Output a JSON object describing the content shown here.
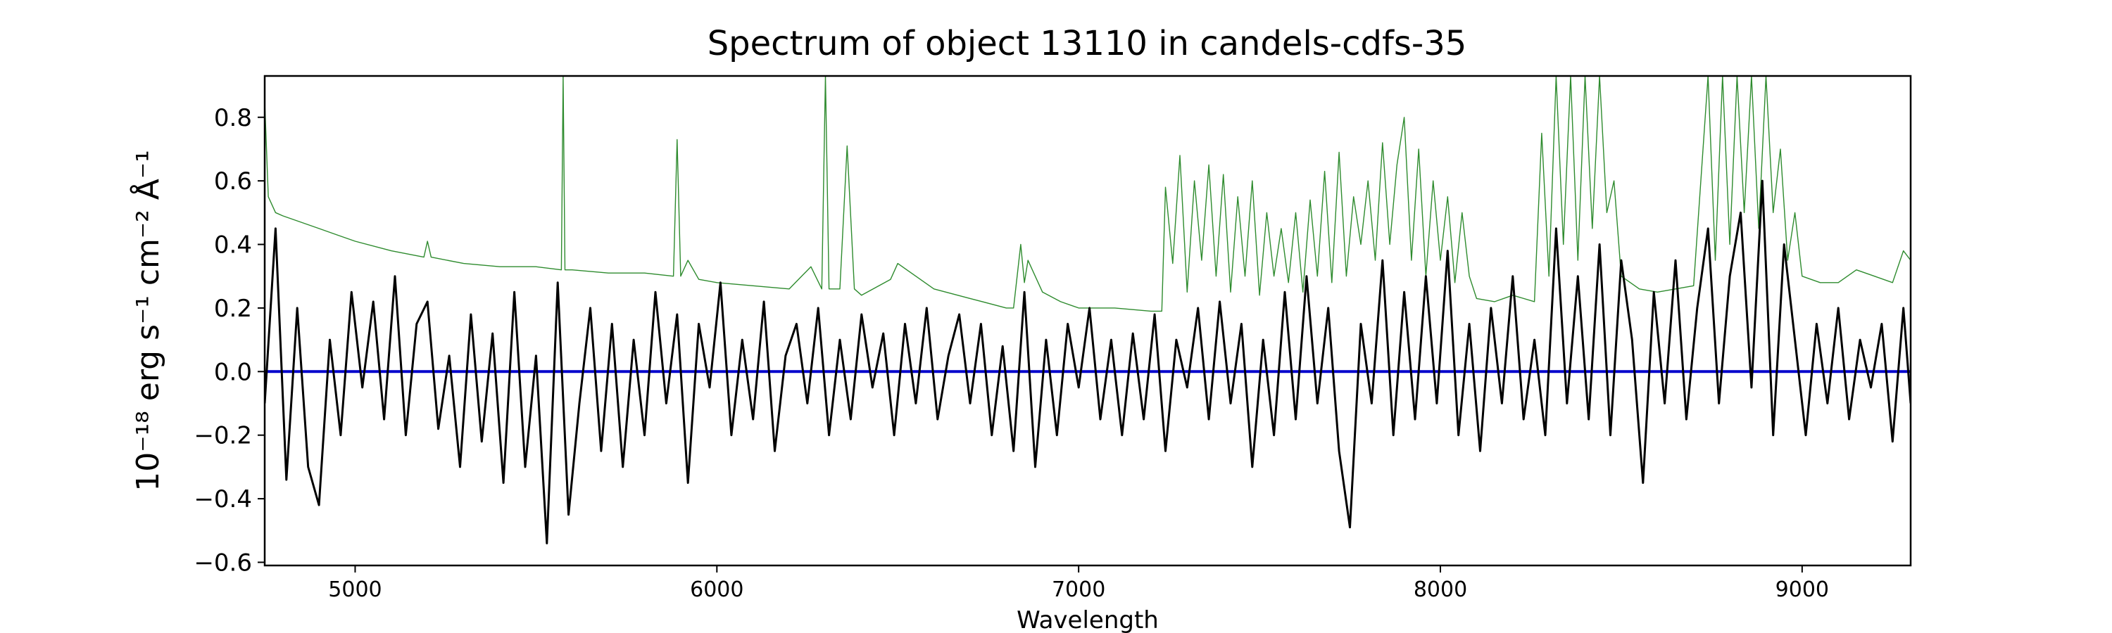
{
  "chart_data": {
    "type": "line",
    "title": "Spectrum of object 13110 in candels-cdfs-35",
    "xlabel": "Wavelength",
    "ylabel": "10⁻¹⁸ erg s⁻¹ cm⁻² Å⁻¹",
    "xlim": [
      4750,
      9300
    ],
    "ylim": [
      -0.61,
      0.93
    ],
    "xticks": [
      5000,
      6000,
      7000,
      8000,
      9000
    ],
    "xtick_labels": [
      "5000",
      "6000",
      "7000",
      "8000",
      "9000"
    ],
    "yticks": [
      -0.6,
      -0.4,
      -0.2,
      0.0,
      0.2,
      0.4,
      0.6,
      0.8
    ],
    "ytick_labels": [
      "−0.6",
      "−0.4",
      "−0.2",
      "0.0",
      "0.2",
      "0.4",
      "0.6",
      "0.8"
    ],
    "grid": false,
    "series": [
      {
        "role": "flux",
        "color": "#000000",
        "x": [
          4750,
          4780,
          4810,
          4840,
          4870,
          4900,
          4930,
          4960,
          4990,
          5020,
          5050,
          5080,
          5110,
          5140,
          5170,
          5200,
          5230,
          5260,
          5290,
          5320,
          5350,
          5380,
          5410,
          5440,
          5470,
          5500,
          5530,
          5560,
          5590,
          5620,
          5650,
          5680,
          5710,
          5740,
          5770,
          5800,
          5830,
          5860,
          5890,
          5920,
          5950,
          5980,
          6010,
          6040,
          6070,
          6100,
          6130,
          6160,
          6190,
          6220,
          6250,
          6280,
          6310,
          6340,
          6370,
          6400,
          6430,
          6460,
          6490,
          6520,
          6550,
          6580,
          6610,
          6640,
          6670,
          6700,
          6730,
          6760,
          6790,
          6820,
          6850,
          6880,
          6910,
          6940,
          6970,
          7000,
          7030,
          7060,
          7090,
          7120,
          7150,
          7180,
          7210,
          7240,
          7270,
          7300,
          7330,
          7360,
          7390,
          7420,
          7450,
          7480,
          7510,
          7540,
          7570,
          7600,
          7630,
          7660,
          7690,
          7720,
          7750,
          7780,
          7810,
          7840,
          7870,
          7900,
          7930,
          7960,
          7990,
          8020,
          8050,
          8080,
          8110,
          8140,
          8170,
          8200,
          8230,
          8260,
          8290,
          8320,
          8350,
          8380,
          8410,
          8440,
          8470,
          8500,
          8530,
          8560,
          8590,
          8620,
          8650,
          8680,
          8710,
          8740,
          8770,
          8800,
          8830,
          8860,
          8890,
          8920,
          8950,
          8980,
          9010,
          9040,
          9070,
          9100,
          9130,
          9160,
          9190,
          9220,
          9250,
          9280,
          9300
        ],
        "y": [
          -0.1,
          0.45,
          -0.34,
          0.2,
          -0.3,
          -0.42,
          0.1,
          -0.2,
          0.25,
          -0.05,
          0.22,
          -0.15,
          0.3,
          -0.2,
          0.15,
          0.22,
          -0.18,
          0.05,
          -0.3,
          0.18,
          -0.22,
          0.12,
          -0.35,
          0.25,
          -0.3,
          0.05,
          -0.54,
          0.28,
          -0.45,
          -0.1,
          0.2,
          -0.25,
          0.15,
          -0.3,
          0.1,
          -0.2,
          0.25,
          -0.1,
          0.18,
          -0.35,
          0.15,
          -0.05,
          0.28,
          -0.2,
          0.1,
          -0.15,
          0.22,
          -0.25,
          0.05,
          0.15,
          -0.1,
          0.2,
          -0.2,
          0.1,
          -0.15,
          0.18,
          -0.05,
          0.12,
          -0.2,
          0.15,
          -0.1,
          0.2,
          -0.15,
          0.05,
          0.18,
          -0.1,
          0.15,
          -0.2,
          0.08,
          -0.25,
          0.25,
          -0.3,
          0.1,
          -0.2,
          0.15,
          -0.05,
          0.2,
          -0.15,
          0.1,
          -0.2,
          0.12,
          -0.15,
          0.18,
          -0.25,
          0.1,
          -0.05,
          0.2,
          -0.15,
          0.22,
          -0.1,
          0.15,
          -0.3,
          0.1,
          -0.2,
          0.25,
          -0.15,
          0.3,
          -0.1,
          0.2,
          -0.25,
          -0.49,
          0.15,
          -0.1,
          0.35,
          -0.2,
          0.25,
          -0.15,
          0.3,
          -0.1,
          0.38,
          -0.2,
          0.15,
          -0.25,
          0.2,
          -0.1,
          0.3,
          -0.15,
          0.1,
          -0.2,
          0.45,
          -0.1,
          0.3,
          -0.15,
          0.4,
          -0.2,
          0.35,
          0.1,
          -0.35,
          0.25,
          -0.1,
          0.35,
          -0.15,
          0.2,
          0.45,
          -0.1,
          0.3,
          0.5,
          -0.05,
          0.6,
          -0.2,
          0.4,
          0.1,
          -0.2,
          0.15,
          -0.1,
          0.2,
          -0.15,
          0.1,
          -0.05,
          0.15,
          -0.22,
          0.2,
          -0.1
        ]
      },
      {
        "role": "zero",
        "color": "#0000cc",
        "x": [
          4750,
          9300
        ],
        "y": [
          0.0,
          0.0
        ]
      },
      {
        "role": "error",
        "color": "#2e8b2e",
        "x": [
          4750,
          4760,
          4780,
          4800,
          4850,
          4900,
          4950,
          5000,
          5100,
          5190,
          5200,
          5210,
          5300,
          5400,
          5500,
          5570,
          5575,
          5580,
          5600,
          5700,
          5800,
          5880,
          5890,
          5900,
          5920,
          5950,
          6000,
          6100,
          6200,
          6260,
          6290,
          6300,
          6310,
          6340,
          6360,
          6380,
          6400,
          6480,
          6500,
          6550,
          6600,
          6700,
          6800,
          6820,
          6840,
          6850,
          6860,
          6900,
          6950,
          7000,
          7100,
          7200,
          7230,
          7240,
          7260,
          7280,
          7300,
          7320,
          7340,
          7360,
          7380,
          7400,
          7420,
          7440,
          7460,
          7480,
          7500,
          7520,
          7540,
          7560,
          7580,
          7600,
          7620,
          7640,
          7660,
          7680,
          7700,
          7720,
          7740,
          7760,
          7780,
          7800,
          7820,
          7840,
          7860,
          7880,
          7900,
          7920,
          7940,
          7960,
          7980,
          8000,
          8020,
          8040,
          8060,
          8080,
          8100,
          8150,
          8200,
          8260,
          8280,
          8300,
          8320,
          8340,
          8360,
          8380,
          8400,
          8420,
          8440,
          8460,
          8480,
          8500,
          8550,
          8600,
          8650,
          8700,
          8740,
          8760,
          8780,
          8800,
          8820,
          8840,
          8860,
          8880,
          8900,
          8920,
          8940,
          8960,
          8980,
          9000,
          9050,
          9100,
          9150,
          9200,
          9250,
          9280,
          9300
        ],
        "y": [
          0.85,
          0.55,
          0.5,
          0.49,
          0.47,
          0.45,
          0.43,
          0.41,
          0.38,
          0.36,
          0.41,
          0.36,
          0.34,
          0.33,
          0.33,
          0.32,
          0.93,
          0.32,
          0.32,
          0.31,
          0.31,
          0.3,
          0.73,
          0.3,
          0.35,
          0.29,
          0.28,
          0.27,
          0.26,
          0.33,
          0.26,
          0.93,
          0.26,
          0.26,
          0.71,
          0.26,
          0.24,
          0.29,
          0.34,
          0.3,
          0.26,
          0.23,
          0.2,
          0.2,
          0.4,
          0.28,
          0.35,
          0.25,
          0.22,
          0.2,
          0.2,
          0.19,
          0.19,
          0.58,
          0.34,
          0.68,
          0.25,
          0.6,
          0.35,
          0.65,
          0.3,
          0.62,
          0.25,
          0.55,
          0.3,
          0.6,
          0.24,
          0.5,
          0.3,
          0.45,
          0.28,
          0.5,
          0.25,
          0.54,
          0.3,
          0.63,
          0.28,
          0.69,
          0.3,
          0.55,
          0.4,
          0.6,
          0.35,
          0.72,
          0.4,
          0.65,
          0.8,
          0.35,
          0.7,
          0.3,
          0.6,
          0.35,
          0.55,
          0.28,
          0.5,
          0.3,
          0.23,
          0.22,
          0.24,
          0.22,
          0.75,
          0.3,
          0.93,
          0.4,
          0.93,
          0.35,
          0.93,
          0.45,
          0.93,
          0.5,
          0.6,
          0.3,
          0.26,
          0.25,
          0.26,
          0.27,
          0.93,
          0.35,
          0.93,
          0.4,
          0.93,
          0.5,
          0.93,
          0.45,
          0.93,
          0.5,
          0.7,
          0.35,
          0.5,
          0.3,
          0.28,
          0.28,
          0.32,
          0.3,
          0.28,
          0.38,
          0.35
        ]
      }
    ]
  }
}
